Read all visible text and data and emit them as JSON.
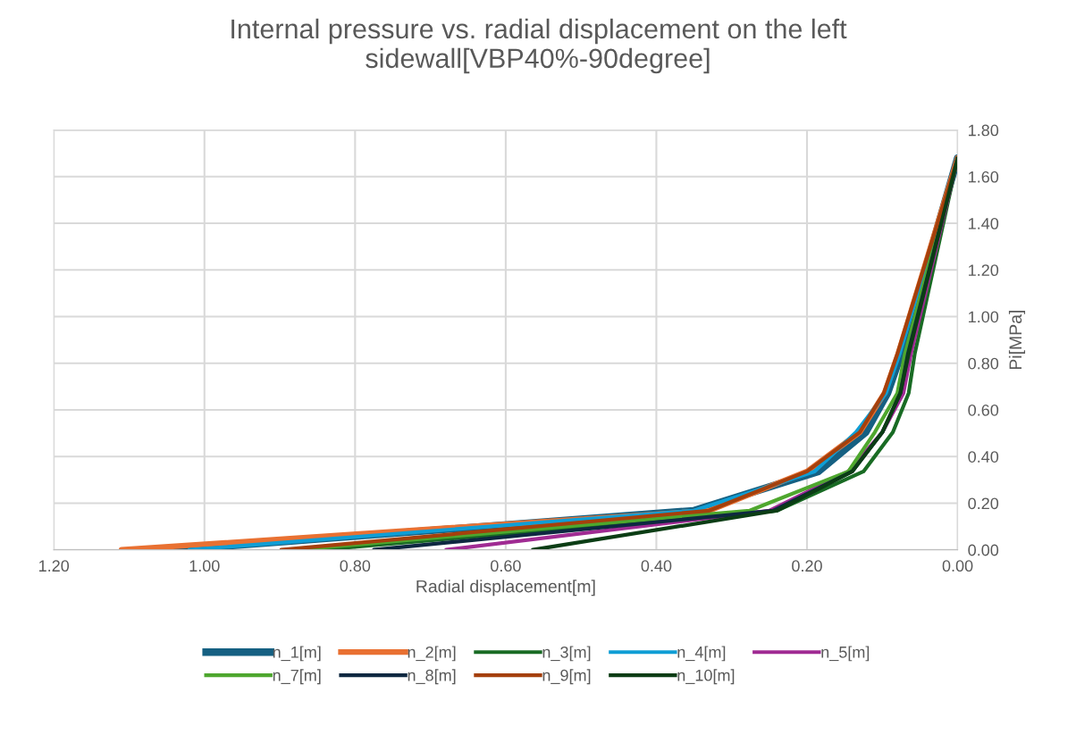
{
  "chart_data": {
    "type": "line",
    "title": "Internal pressure vs. radial displacement on the left sidewall[VBP40%-90degree]",
    "xlabel": "Radial displacement[m]",
    "ylabel": "Pi[MPa]",
    "xlim": [
      1.2,
      0
    ],
    "ylim": [
      0,
      1.8
    ],
    "xticks": [
      {
        "value": 1.2,
        "label": "1.20"
      },
      {
        "value": 1.0,
        "label": "1.00"
      },
      {
        "value": 0.8,
        "label": "0.80"
      },
      {
        "value": 0.6,
        "label": "0.60"
      },
      {
        "value": 0.4,
        "label": "0.40"
      },
      {
        "value": 0.2,
        "label": "0.20"
      },
      {
        "value": 0,
        "label": "0.00"
      }
    ],
    "yticks": [
      {
        "value": 0,
        "label": "0.00"
      },
      {
        "value": 0.2,
        "label": "0.20"
      },
      {
        "value": 0.4,
        "label": "0.40"
      },
      {
        "value": 0.6,
        "label": "0.60"
      },
      {
        "value": 0.8,
        "label": "0.80"
      },
      {
        "value": 1.0,
        "label": "1.00"
      },
      {
        "value": 1.2,
        "label": "1.20"
      },
      {
        "value": 1.4,
        "label": "1.40"
      },
      {
        "value": 1.6,
        "label": "1.60"
      },
      {
        "value": 1.8,
        "label": "1.80"
      }
    ],
    "grid": true,
    "legend": "bottom",
    "marker": "none",
    "line_style": "solid",
    "series": [
      {
        "name": "n_1[m]",
        "color": "#156082",
        "x": [
          1.04,
          0.35,
          0.185,
          0.122,
          0.093,
          0.075,
          0
        ],
        "values": [
          0,
          0.168,
          0.336,
          0.504,
          0.672,
          0.84,
          1.68
        ]
      },
      {
        "name": "n_2[m]",
        "color": "#e97132",
        "x": [
          1.11,
          0.33,
          0.2,
          0.13,
          0.097,
          0.079,
          0
        ],
        "values": [
          0,
          0.168,
          0.336,
          0.504,
          0.672,
          0.84,
          1.68
        ]
      },
      {
        "name": "n_3[m]",
        "color": "#196b24",
        "x": [
          0.846,
          0.24,
          0.125,
          0.086,
          0.065,
          0.057,
          0
        ],
        "values": [
          0,
          0.168,
          0.336,
          0.504,
          0.672,
          0.84,
          1.68
        ]
      },
      {
        "name": "n_4[m]",
        "color": "#0f9ed5",
        "x": [
          1.02,
          0.35,
          0.19,
          0.135,
          0.095,
          0.077,
          0
        ],
        "values": [
          0,
          0.168,
          0.336,
          0.504,
          0.672,
          0.84,
          1.68
        ]
      },
      {
        "name": "n_5[m]",
        "color": "#a02b93",
        "x": [
          0.679,
          0.25,
          0.145,
          0.1,
          0.072,
          0.062,
          0
        ],
        "values": [
          0,
          0.168,
          0.336,
          0.504,
          0.672,
          0.84,
          1.68
        ]
      },
      {
        "name": "n_7[m]",
        "color": "#4ea72e",
        "x": [
          0.879,
          0.276,
          0.145,
          0.11,
          0.08,
          0.07,
          0
        ],
        "values": [
          0,
          0.168,
          0.336,
          0.504,
          0.672,
          0.84,
          1.68
        ]
      },
      {
        "name": "n_8[m]",
        "color": "#0e2841",
        "x": [
          0.775,
          0.245,
          0.14,
          0.1,
          0.076,
          0.066,
          0
        ],
        "values": [
          0,
          0.168,
          0.336,
          0.504,
          0.672,
          0.84,
          1.68
        ]
      },
      {
        "name": "n_9[m]",
        "color": "#a5400c",
        "x": [
          0.898,
          0.33,
          0.2,
          0.13,
          0.098,
          0.08,
          0
        ],
        "values": [
          0,
          0.168,
          0.336,
          0.504,
          0.672,
          0.84,
          1.68
        ]
      },
      {
        "name": "n_10[m]",
        "color": "#0b3d15",
        "x": [
          0.564,
          0.24,
          0.14,
          0.1,
          0.076,
          0.065,
          0
        ],
        "values": [
          0,
          0.168,
          0.336,
          0.504,
          0.672,
          0.84,
          1.68
        ]
      }
    ]
  }
}
